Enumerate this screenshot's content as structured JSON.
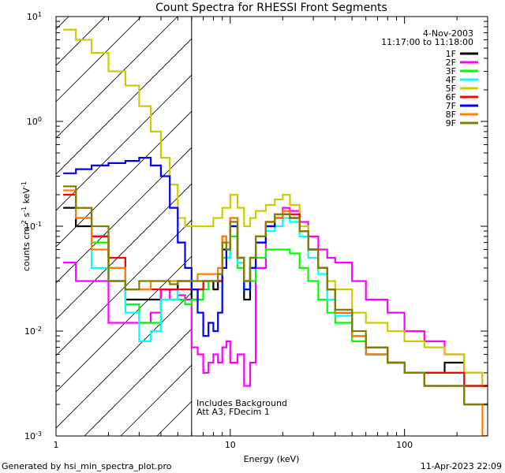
{
  "chart_data": {
    "type": "line",
    "title": "Count Spectra for RHESSI Front Segments",
    "xlabel": "Energy (keV)",
    "ylabel_base": "counts cm",
    "ylabel_exp1": "-2",
    "ylabel_mid": " s",
    "ylabel_exp2": "-1",
    "ylabel_unit": " keV",
    "ylabel_exp3": "-1",
    "xscale": "log",
    "yscale": "log",
    "xlim": [
      1,
      300
    ],
    "ylim": [
      0.001,
      10
    ],
    "x_ticks": [
      {
        "value": 1,
        "label": "1"
      },
      {
        "value": 10,
        "label": "10"
      },
      {
        "value": 100,
        "label": "100"
      }
    ],
    "y_ticks": [
      {
        "value": 0.001,
        "base": "10",
        "exp": "-3"
      },
      {
        "value": 0.01,
        "base": "10",
        "exp": "-2"
      },
      {
        "value": 0.1,
        "base": "10",
        "exp": "-1"
      },
      {
        "value": 1,
        "base": "10",
        "exp": "0"
      },
      {
        "value": 10,
        "base": "10",
        "exp": "1"
      }
    ],
    "hatch_region_kev": [
      1.1,
      6.0
    ],
    "date": "4-Nov-2003",
    "time_range": "11:17:00 to 11:18:00",
    "annotation_line1": "Includes Background",
    "annotation_line2": "Att A3, FDecim 1",
    "series": [
      {
        "name": "1F",
        "color": "#000000",
        "x": [
          1.1,
          1.3,
          1.6,
          2.0,
          2.5,
          3.0,
          3.5,
          4.0,
          4.5,
          5.0,
          5.5,
          6.0,
          6.5,
          7.0,
          7.5,
          8.0,
          8.5,
          9.0,
          9.5,
          10,
          11,
          12,
          13,
          14,
          16,
          18,
          20,
          22,
          25,
          28,
          32,
          36,
          40,
          50,
          60,
          80,
          100,
          130,
          170,
          220,
          280
        ],
        "y": [
          0.15,
          0.1,
          0.08,
          0.03,
          0.02,
          0.02,
          0.02,
          0.025,
          0.025,
          0.03,
          0.03,
          0.02,
          0.025,
          0.03,
          0.03,
          0.025,
          0.03,
          0.06,
          0.05,
          0.1,
          0.045,
          0.02,
          0.04,
          0.07,
          0.1,
          0.12,
          0.13,
          0.12,
          0.09,
          0.06,
          0.04,
          0.025,
          0.015,
          0.009,
          0.007,
          0.005,
          0.004,
          0.004,
          0.005,
          0.003,
          0.003
        ]
      },
      {
        "name": "2F",
        "color": "#ff00ff",
        "x": [
          1.1,
          1.3,
          1.6,
          2.0,
          2.5,
          3.0,
          3.5,
          4.0,
          4.5,
          5.0,
          5.5,
          6.0,
          6.5,
          7.0,
          7.5,
          8.0,
          8.5,
          9.0,
          9.5,
          10,
          11,
          12,
          13,
          14,
          16,
          18,
          20,
          22,
          25,
          28,
          32,
          36,
          40,
          50,
          60,
          80,
          100,
          130,
          170,
          220,
          280
        ],
        "y": [
          0.045,
          0.03,
          0.03,
          0.012,
          0.012,
          0.012,
          0.015,
          0.025,
          0.02,
          0.022,
          0.02,
          0.007,
          0.006,
          0.004,
          0.005,
          0.006,
          0.005,
          0.007,
          0.008,
          0.005,
          0.006,
          0.003,
          0.005,
          0.04,
          0.1,
          0.12,
          0.15,
          0.14,
          0.11,
          0.08,
          0.06,
          0.05,
          0.045,
          0.03,
          0.02,
          0.015,
          0.01,
          0.008,
          0.006,
          0.004,
          0.003
        ]
      },
      {
        "name": "3F",
        "color": "#00ff00",
        "x": [
          1.1,
          1.3,
          1.6,
          2.0,
          2.5,
          3.0,
          3.5,
          4.0,
          4.5,
          5.0,
          5.5,
          6.0,
          6.5,
          7.0,
          7.5,
          8.0,
          8.5,
          9.0,
          9.5,
          10,
          11,
          12,
          13,
          14,
          16,
          18,
          20,
          22,
          25,
          28,
          32,
          36,
          40,
          50,
          60,
          80,
          100,
          130,
          170,
          220,
          280
        ],
        "y": [
          0.2,
          0.12,
          0.07,
          0.04,
          0.018,
          0.012,
          0.012,
          0.02,
          0.02,
          0.02,
          0.018,
          0.02,
          0.02,
          0.025,
          0.03,
          0.03,
          0.03,
          0.05,
          0.05,
          0.08,
          0.04,
          0.025,
          0.03,
          0.05,
          0.06,
          0.06,
          0.06,
          0.055,
          0.04,
          0.03,
          0.02,
          0.015,
          0.012,
          0.008,
          0.006,
          0.005,
          0.004,
          0.004,
          0.004,
          0.003,
          0.003
        ]
      },
      {
        "name": "4F",
        "color": "#00ffff",
        "x": [
          1.1,
          1.3,
          1.6,
          2.0,
          2.5,
          3.0,
          3.5,
          4.0,
          4.5,
          5.0,
          5.5,
          6.0,
          6.5,
          7.0,
          7.5,
          8.0,
          8.5,
          9.0,
          9.5,
          10,
          11,
          12,
          13,
          14,
          16,
          18,
          20,
          22,
          25,
          28,
          32,
          36,
          40,
          50,
          60,
          80,
          100,
          130,
          170,
          220,
          280
        ],
        "y": [
          0.2,
          0.12,
          0.04,
          0.03,
          0.015,
          0.008,
          0.01,
          0.02,
          0.02,
          0.025,
          0.025,
          0.025,
          0.025,
          0.03,
          0.03,
          0.03,
          0.03,
          0.07,
          0.05,
          0.1,
          0.045,
          0.025,
          0.04,
          0.07,
          0.09,
          0.1,
          0.12,
          0.11,
          0.08,
          0.05,
          0.035,
          0.02,
          0.014,
          0.009,
          0.006,
          0.005,
          0.004,
          0.004,
          0.004,
          0.003,
          0.003
        ]
      },
      {
        "name": "5F",
        "color": "#cccc00",
        "x": [
          1.1,
          1.3,
          1.6,
          2.0,
          2.5,
          3.0,
          3.5,
          4.0,
          4.5,
          5.0,
          5.5,
          6.0,
          6.5,
          7.0,
          7.5,
          8.0,
          8.5,
          9.0,
          9.5,
          10,
          11,
          12,
          13,
          14,
          16,
          18,
          20,
          22,
          25,
          28,
          32,
          36,
          40,
          50,
          60,
          80,
          100,
          130,
          170,
          220,
          280
        ],
        "y": [
          7.5,
          6,
          4.5,
          3,
          2.2,
          1.4,
          0.8,
          0.45,
          0.25,
          0.12,
          0.1,
          0.1,
          0.1,
          0.1,
          0.1,
          0.12,
          0.12,
          0.15,
          0.15,
          0.2,
          0.15,
          0.1,
          0.12,
          0.14,
          0.16,
          0.18,
          0.2,
          0.16,
          0.1,
          0.06,
          0.04,
          0.03,
          0.025,
          0.015,
          0.012,
          0.01,
          0.008,
          0.007,
          0.006,
          0.004,
          0.003
        ]
      },
      {
        "name": "6F",
        "color": "#ff0000",
        "x": [
          1.1,
          1.3,
          1.6,
          2.0,
          2.5,
          3.0,
          3.5,
          4.0,
          4.5,
          5.0,
          5.5,
          6.0,
          6.5,
          7.0,
          7.5,
          8.0,
          8.5,
          9.0,
          9.5,
          10,
          11,
          12,
          13,
          14,
          16,
          18,
          20,
          22,
          25,
          28,
          32,
          36,
          40,
          50,
          60,
          80,
          100,
          130,
          170,
          220,
          280
        ],
        "y": [
          0.2,
          0.15,
          0.08,
          0.05,
          0.025,
          0.025,
          0.025,
          0.025,
          0.025,
          0.025,
          0.025,
          0.025,
          0.025,
          0.03,
          0.03,
          0.03,
          0.03,
          0.08,
          0.06,
          0.12,
          0.05,
          0.03,
          0.05,
          0.08,
          0.11,
          0.13,
          0.14,
          0.13,
          0.09,
          0.06,
          0.04,
          0.025,
          0.015,
          0.009,
          0.007,
          0.005,
          0.004,
          0.004,
          0.004,
          0.003,
          0.003
        ]
      },
      {
        "name": "7F",
        "color": "#0000ff",
        "x": [
          1.1,
          1.3,
          1.6,
          2.0,
          2.5,
          3.0,
          3.5,
          4.0,
          4.5,
          5.0,
          5.5,
          6.0,
          6.5,
          7.0,
          7.5,
          8.0,
          8.5,
          9.0,
          9.5,
          10,
          11,
          12,
          13,
          14,
          16,
          18,
          20,
          22,
          25,
          28,
          32,
          36,
          40,
          50,
          60,
          80,
          100,
          130,
          170,
          220,
          280
        ],
        "y": [
          0.32,
          0.35,
          0.38,
          0.4,
          0.42,
          0.45,
          0.38,
          0.3,
          0.15,
          0.07,
          0.04,
          0.025,
          0.015,
          0.009,
          0.012,
          0.01,
          0.015,
          0.04,
          0.06,
          0.1,
          0.05,
          0.025,
          0.04,
          0.07,
          0.1,
          0.12,
          0.13,
          0.12,
          0.09,
          0.06,
          0.04,
          0.025,
          0.015,
          0.009,
          0.006,
          0.005,
          0.004,
          0.003,
          0.003,
          0.002,
          0.002
        ]
      },
      {
        "name": "8F",
        "color": "#ff8000",
        "x": [
          1.1,
          1.3,
          1.6,
          2.0,
          2.5,
          3.0,
          3.5,
          4.0,
          4.5,
          5.0,
          5.5,
          6.0,
          6.5,
          7.0,
          7.5,
          8.0,
          8.5,
          9.0,
          9.5,
          10,
          11,
          12,
          13,
          14,
          16,
          18,
          20,
          22,
          25,
          28,
          32,
          36,
          40,
          50,
          60,
          80,
          100,
          130,
          170,
          220,
          280
        ],
        "y": [
          0.22,
          0.12,
          0.06,
          0.04,
          0.025,
          0.025,
          0.03,
          0.03,
          0.03,
          0.03,
          0.03,
          0.03,
          0.035,
          0.035,
          0.035,
          0.035,
          0.04,
          0.08,
          0.07,
          0.12,
          0.05,
          0.03,
          0.05,
          0.08,
          0.11,
          0.12,
          0.14,
          0.12,
          0.09,
          0.06,
          0.04,
          0.025,
          0.015,
          0.009,
          0.006,
          0.005,
          0.004,
          0.003,
          0.003,
          0.002,
          0.001
        ]
      },
      {
        "name": "9F",
        "color": "#808000",
        "x": [
          1.1,
          1.3,
          1.6,
          2.0,
          2.5,
          3.0,
          3.5,
          4.0,
          4.5,
          5.0,
          5.5,
          6.0,
          6.5,
          7.0,
          7.5,
          8.0,
          8.5,
          9.0,
          9.5,
          10,
          11,
          12,
          13,
          14,
          16,
          18,
          20,
          22,
          25,
          28,
          32,
          36,
          40,
          50,
          60,
          80,
          100,
          130,
          170,
          220,
          280
        ],
        "y": [
          0.24,
          0.15,
          0.1,
          0.03,
          0.025,
          0.03,
          0.03,
          0.03,
          0.028,
          0.03,
          0.03,
          0.03,
          0.03,
          0.03,
          0.03,
          0.03,
          0.035,
          0.07,
          0.06,
          0.11,
          0.05,
          0.03,
          0.05,
          0.08,
          0.11,
          0.13,
          0.13,
          0.12,
          0.09,
          0.06,
          0.04,
          0.025,
          0.016,
          0.01,
          0.007,
          0.005,
          0.004,
          0.003,
          0.003,
          0.002,
          0.002
        ]
      }
    ]
  },
  "footer": {
    "left": "Generated by hsi_min_spectra_plot.pro",
    "right": "11-Apr-2023 22:09"
  }
}
